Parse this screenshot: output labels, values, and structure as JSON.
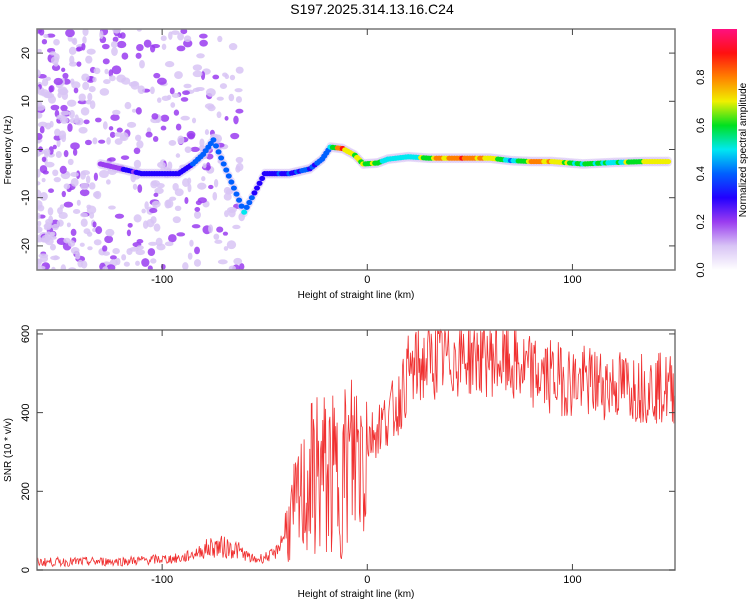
{
  "title": "S197.2025.314.13.16.C24",
  "chart_data": [
    {
      "type": "heatmap",
      "title": "S197.2025.314.13.16.C24",
      "xlabel": "Height of straight line (km)",
      "ylabel": "Frequency (Hz)",
      "xlim": [
        -161,
        150
      ],
      "ylim": [
        -25,
        25
      ],
      "xticks": [
        -100,
        0,
        100
      ],
      "yticks": [
        -20,
        -10,
        0,
        10,
        20
      ],
      "colorbar": {
        "label": "Normalized spectral amplitude",
        "range": [
          0,
          1
        ],
        "ticks": [
          "0.0",
          "0.2",
          "0.4",
          "0.6",
          "0.8"
        ],
        "colormap": [
          "#ffffff",
          "#d8c4f5",
          "#9a3cf0",
          "#2200ff",
          "#0060ff",
          "#00e8f0",
          "#00e020",
          "#f0f000",
          "#ff8000",
          "#ff1010",
          "#ff1080"
        ]
      },
      "ridge": [
        {
          "x": -130,
          "y": -3,
          "a": 0.25
        },
        {
          "x": -110,
          "y": -5,
          "a": 0.3
        },
        {
          "x": -100,
          "y": -5,
          "a": 0.3
        },
        {
          "x": -92,
          "y": -5,
          "a": 0.35
        },
        {
          "x": -85,
          "y": -3,
          "a": 0.38
        },
        {
          "x": -80,
          "y": -1,
          "a": 0.4
        },
        {
          "x": -75,
          "y": 2,
          "a": 0.4
        },
        {
          "x": -60,
          "y": -13,
          "a": 0.5
        },
        {
          "x": -55,
          "y": -9,
          "a": 0.35
        },
        {
          "x": -50,
          "y": -5,
          "a": 0.35
        },
        {
          "x": -38,
          "y": -5,
          "a": 0.4
        },
        {
          "x": -28,
          "y": -4,
          "a": 0.38
        },
        {
          "x": -22,
          "y": -2,
          "a": 0.4
        },
        {
          "x": -18,
          "y": 0.5,
          "a": 0.55
        },
        {
          "x": -12,
          "y": 0.2,
          "a": 0.9
        },
        {
          "x": -6,
          "y": -1.2,
          "a": 0.65
        },
        {
          "x": -2,
          "y": -3,
          "a": 0.7
        },
        {
          "x": 5,
          "y": -2.8,
          "a": 0.65
        },
        {
          "x": 10,
          "y": -2,
          "a": 0.55
        },
        {
          "x": 20,
          "y": -1.5,
          "a": 0.55
        },
        {
          "x": 30,
          "y": -1.8,
          "a": 0.75
        },
        {
          "x": 45,
          "y": -1.8,
          "a": 0.92
        },
        {
          "x": 60,
          "y": -1.8,
          "a": 0.8
        },
        {
          "x": 70,
          "y": -2.3,
          "a": 0.5
        },
        {
          "x": 80,
          "y": -2.5,
          "a": 0.85
        },
        {
          "x": 90,
          "y": -2.5,
          "a": 0.85
        },
        {
          "x": 105,
          "y": -3,
          "a": 0.6
        },
        {
          "x": 120,
          "y": -2.7,
          "a": 0.6
        },
        {
          "x": 135,
          "y": -2.5,
          "a": 0.78
        },
        {
          "x": 148,
          "y": -2.5,
          "a": 0.75
        }
      ]
    },
    {
      "type": "line",
      "xlabel": "Height of straight line (km)",
      "ylabel": "SNR (10 * v/v)",
      "xlim": [
        -161,
        150
      ],
      "ylim": [
        0,
        610
      ],
      "xticks": [
        -100,
        0,
        100
      ],
      "yticks": [
        0,
        200,
        400,
        600
      ],
      "color": "#f03030",
      "envelope": [
        {
          "x": -161,
          "y": 20
        },
        {
          "x": -120,
          "y": 22
        },
        {
          "x": -90,
          "y": 30
        },
        {
          "x": -75,
          "y": 60
        },
        {
          "x": -65,
          "y": 55
        },
        {
          "x": -55,
          "y": 25
        },
        {
          "x": -45,
          "y": 40
        },
        {
          "x": -35,
          "y": 150
        },
        {
          "x": -25,
          "y": 250
        },
        {
          "x": -15,
          "y": 230
        },
        {
          "x": -5,
          "y": 300
        },
        {
          "x": 5,
          "y": 360
        },
        {
          "x": 15,
          "y": 420
        },
        {
          "x": 20,
          "y": 500
        },
        {
          "x": 30,
          "y": 530
        },
        {
          "x": 45,
          "y": 545
        },
        {
          "x": 60,
          "y": 545
        },
        {
          "x": 80,
          "y": 500
        },
        {
          "x": 100,
          "y": 480
        },
        {
          "x": 120,
          "y": 470
        },
        {
          "x": 150,
          "y": 460
        }
      ]
    }
  ]
}
